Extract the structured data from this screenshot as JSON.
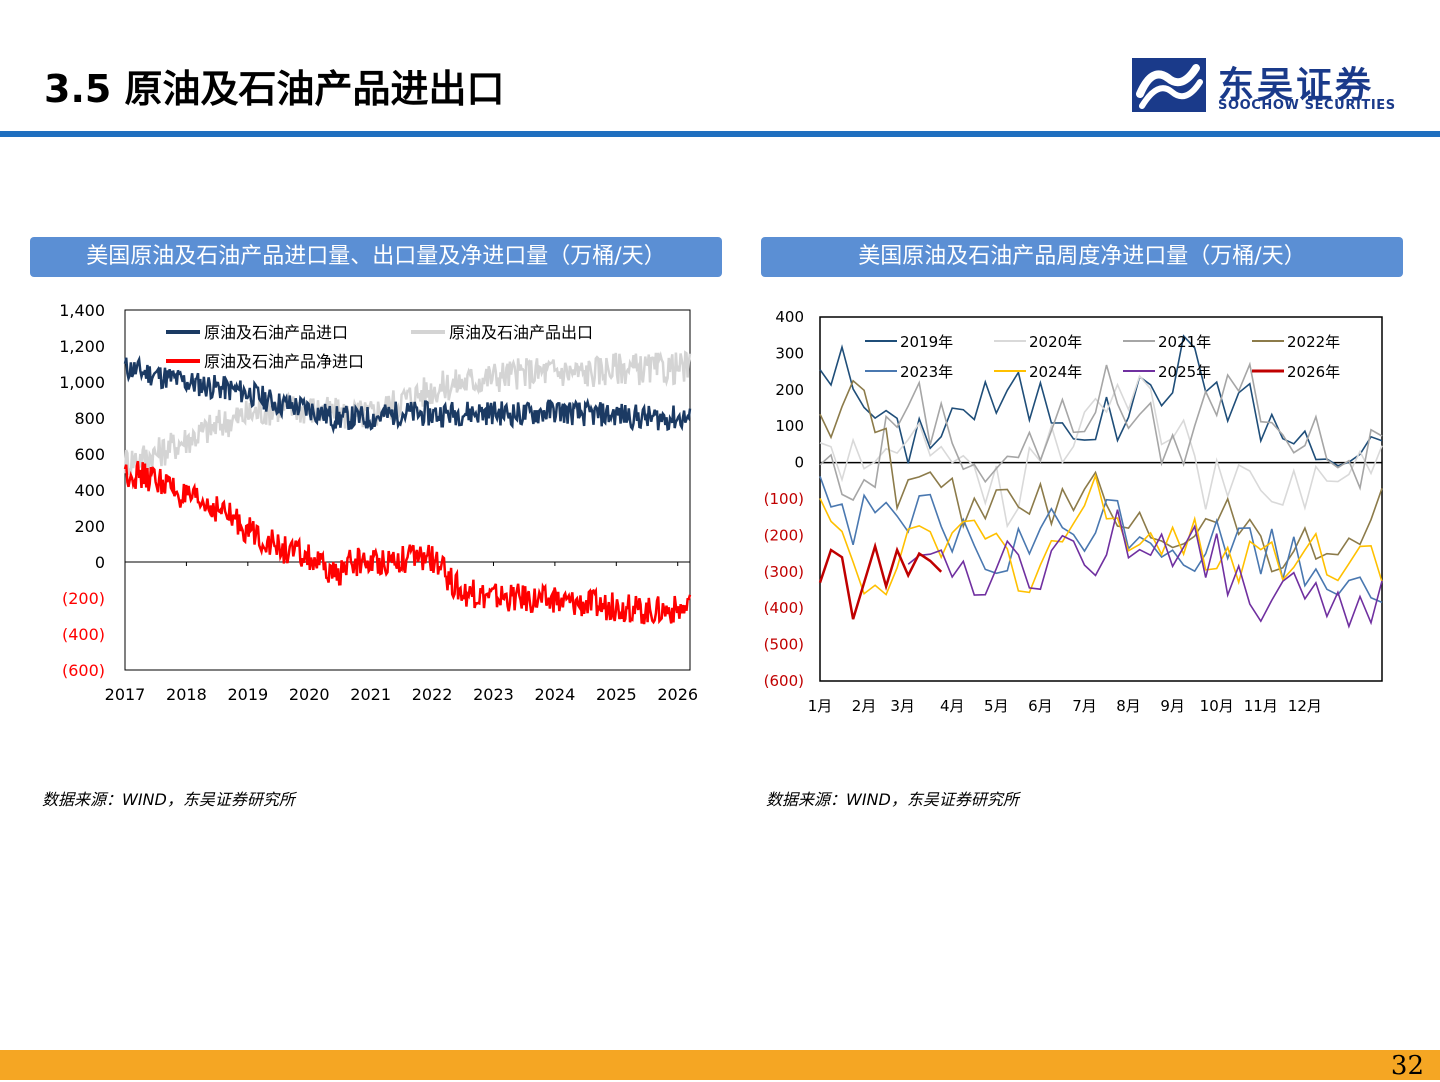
{
  "page": {
    "title": "3.5 原油及石油产品进出口",
    "page_number": "32",
    "brand_color": "#1f6fbf",
    "footer_color": "#f5a623"
  },
  "logo": {
    "cn": "东吴证券",
    "en": "SOOCHOW SECURITIES",
    "icon": "soochow-logo-icon"
  },
  "panels": {
    "left_title": "美国原油及石油产品进口量、出口量及净进口量（万桶/天）",
    "right_title": "美国原油及石油产品周度净进口量（万桶/天）",
    "left_source": "数据来源：WIND，东吴证券研究所",
    "right_source": "数据来源：WIND，东吴证券研究所"
  },
  "chart_data": [
    {
      "type": "line",
      "x_ticks": [
        "2017",
        "2018",
        "2019",
        "2020",
        "2021",
        "2022",
        "2023",
        "2024",
        "2025",
        "2026"
      ],
      "y_ticks": [
        "1,400",
        "1,200",
        "1,000",
        "800",
        "600",
        "400",
        "200",
        "0",
        "(200)",
        "(400)",
        "(600)"
      ],
      "ylim": [
        -600,
        1400
      ],
      "legend_position": "top",
      "series": [
        {
          "name": "原油及石油产品进口",
          "color": "#1b3a63",
          "anchors": [
            [
              2017.0,
              1080
            ],
            [
              2018.0,
              1000
            ],
            [
              2019.0,
              940
            ],
            [
              2019.5,
              880
            ],
            [
              2020.0,
              850
            ],
            [
              2020.4,
              800
            ],
            [
              2021.0,
              800
            ],
            [
              2021.5,
              830
            ],
            [
              2022.0,
              820
            ],
            [
              2022.5,
              830
            ],
            [
              2023.0,
              830
            ],
            [
              2023.5,
              820
            ],
            [
              2024.0,
              840
            ],
            [
              2024.5,
              820
            ],
            [
              2025.0,
              820
            ],
            [
              2025.5,
              800
            ],
            [
              2026.2,
              800
            ]
          ]
        },
        {
          "name": "原油及石油产品出口",
          "color": "#d4d4d4",
          "anchors": [
            [
              2017.0,
              560
            ],
            [
              2017.5,
              600
            ],
            [
              2018.0,
              680
            ],
            [
              2018.5,
              760
            ],
            [
              2019.0,
              820
            ],
            [
              2019.5,
              860
            ],
            [
              2020.0,
              850
            ],
            [
              2020.5,
              820
            ],
            [
              2021.0,
              820
            ],
            [
              2021.5,
              900
            ],
            [
              2022.0,
              960
            ],
            [
              2022.5,
              1000
            ],
            [
              2023.0,
              1030
            ],
            [
              2023.5,
              1050
            ],
            [
              2024.0,
              1060
            ],
            [
              2024.5,
              1050
            ],
            [
              2025.0,
              1080
            ],
            [
              2025.5,
              1070
            ],
            [
              2026.2,
              1080
            ]
          ]
        },
        {
          "name": "原油及石油产品净进口",
          "color": "#ff0000",
          "anchors": [
            [
              2017.0,
              500
            ],
            [
              2017.6,
              450
            ],
            [
              2018.0,
              350
            ],
            [
              2018.5,
              300
            ],
            [
              2019.0,
              180
            ],
            [
              2019.5,
              80
            ],
            [
              2020.0,
              20
            ],
            [
              2020.4,
              -80
            ],
            [
              2020.7,
              0
            ],
            [
              2021.0,
              0
            ],
            [
              2021.5,
              20
            ],
            [
              2022.0,
              20
            ],
            [
              2022.3,
              -100
            ],
            [
              2022.5,
              -170
            ],
            [
              2023.0,
              -190
            ],
            [
              2023.5,
              -200
            ],
            [
              2024.0,
              -220
            ],
            [
              2024.5,
              -230
            ],
            [
              2025.0,
              -250
            ],
            [
              2025.5,
              -270
            ],
            [
              2026.2,
              -260
            ]
          ]
        }
      ]
    },
    {
      "type": "line",
      "x_ticks": [
        "1月",
        "2月",
        "3月",
        "4月",
        "5月",
        "6月",
        "7月",
        "8月",
        "9月",
        "10月",
        "11月",
        "12月"
      ],
      "y_ticks": [
        "400",
        "300",
        "200",
        "100",
        "0",
        "(100)",
        "(200)",
        "(300)",
        "(400)",
        "(500)",
        "(600)"
      ],
      "ylim": [
        -600,
        400
      ],
      "legend_position": "top",
      "series": [
        {
          "name": "2019年",
          "color": "#1f4e79",
          "anchors": [
            [
              1,
              300
            ],
            [
              3,
              250
            ],
            [
              8,
              50
            ],
            [
              14,
              150
            ],
            [
              20,
              180
            ],
            [
              27,
              100
            ],
            [
              34,
              280
            ],
            [
              40,
              150
            ],
            [
              46,
              20
            ],
            [
              52,
              0
            ]
          ]
        },
        {
          "name": "2020年",
          "color": "#d9d9d9",
          "anchors": [
            [
              1,
              80
            ],
            [
              6,
              -50
            ],
            [
              12,
              120
            ],
            [
              18,
              -100
            ],
            [
              24,
              100
            ],
            [
              30,
              200
            ],
            [
              36,
              -50
            ],
            [
              42,
              -100
            ],
            [
              48,
              -20
            ],
            [
              52,
              -20
            ]
          ]
        },
        {
          "name": "2021年",
          "color": "#a6a6a6",
          "anchors": [
            [
              1,
              0
            ],
            [
              5,
              -80
            ],
            [
              9,
              200
            ],
            [
              15,
              0
            ],
            [
              21,
              50
            ],
            [
              27,
              200
            ],
            [
              33,
              30
            ],
            [
              39,
              250
            ],
            [
              45,
              50
            ],
            [
              52,
              0
            ]
          ]
        },
        {
          "name": "2022年",
          "color": "#8c7b4a",
          "anchors": [
            [
              1,
              120
            ],
            [
              4,
              200
            ],
            [
              9,
              -100
            ],
            [
              14,
              -100
            ],
            [
              20,
              -150
            ],
            [
              26,
              -80
            ],
            [
              32,
              -160
            ],
            [
              38,
              -180
            ],
            [
              44,
              -250
            ],
            [
              52,
              -150
            ]
          ]
        },
        {
          "name": "2023年",
          "color": "#4a78b0",
          "anchors": [
            [
              1,
              -70
            ],
            [
              6,
              -200
            ],
            [
              11,
              -150
            ],
            [
              16,
              -280
            ],
            [
              22,
              -200
            ],
            [
              28,
              -150
            ],
            [
              34,
              -240
            ],
            [
              40,
              -220
            ],
            [
              46,
              -300
            ],
            [
              52,
              -300
            ]
          ]
        },
        {
          "name": "2024年",
          "color": "#ffc000",
          "anchors": [
            [
              1,
              -150
            ],
            [
              5,
              -300
            ],
            [
              10,
              -250
            ],
            [
              15,
              -200
            ],
            [
              20,
              -300
            ],
            [
              26,
              -100
            ],
            [
              31,
              -200
            ],
            [
              37,
              -250
            ],
            [
              43,
              -250
            ],
            [
              52,
              -250
            ]
          ]
        },
        {
          "name": "2025年",
          "color": "#7030a0",
          "anchors": [
            [
              9,
              -350
            ],
            [
              13,
              -280
            ],
            [
              18,
              -300
            ],
            [
              24,
              -250
            ],
            [
              29,
              -200
            ],
            [
              35,
              -220
            ],
            [
              40,
              -350
            ],
            [
              46,
              -400
            ],
            [
              52,
              -350
            ]
          ]
        },
        {
          "name": "2026年",
          "color": "#c00000",
          "anchors": [
            [
              1,
              -330
            ],
            [
              2,
              -240
            ],
            [
              3,
              -260
            ],
            [
              4,
              -430
            ],
            [
              5,
              -330
            ],
            [
              6,
              -230
            ],
            [
              7,
              -340
            ],
            [
              8,
              -240
            ],
            [
              9,
              -310
            ],
            [
              10,
              -250
            ],
            [
              11,
              -270
            ],
            [
              12,
              -300
            ]
          ]
        }
      ]
    }
  ]
}
